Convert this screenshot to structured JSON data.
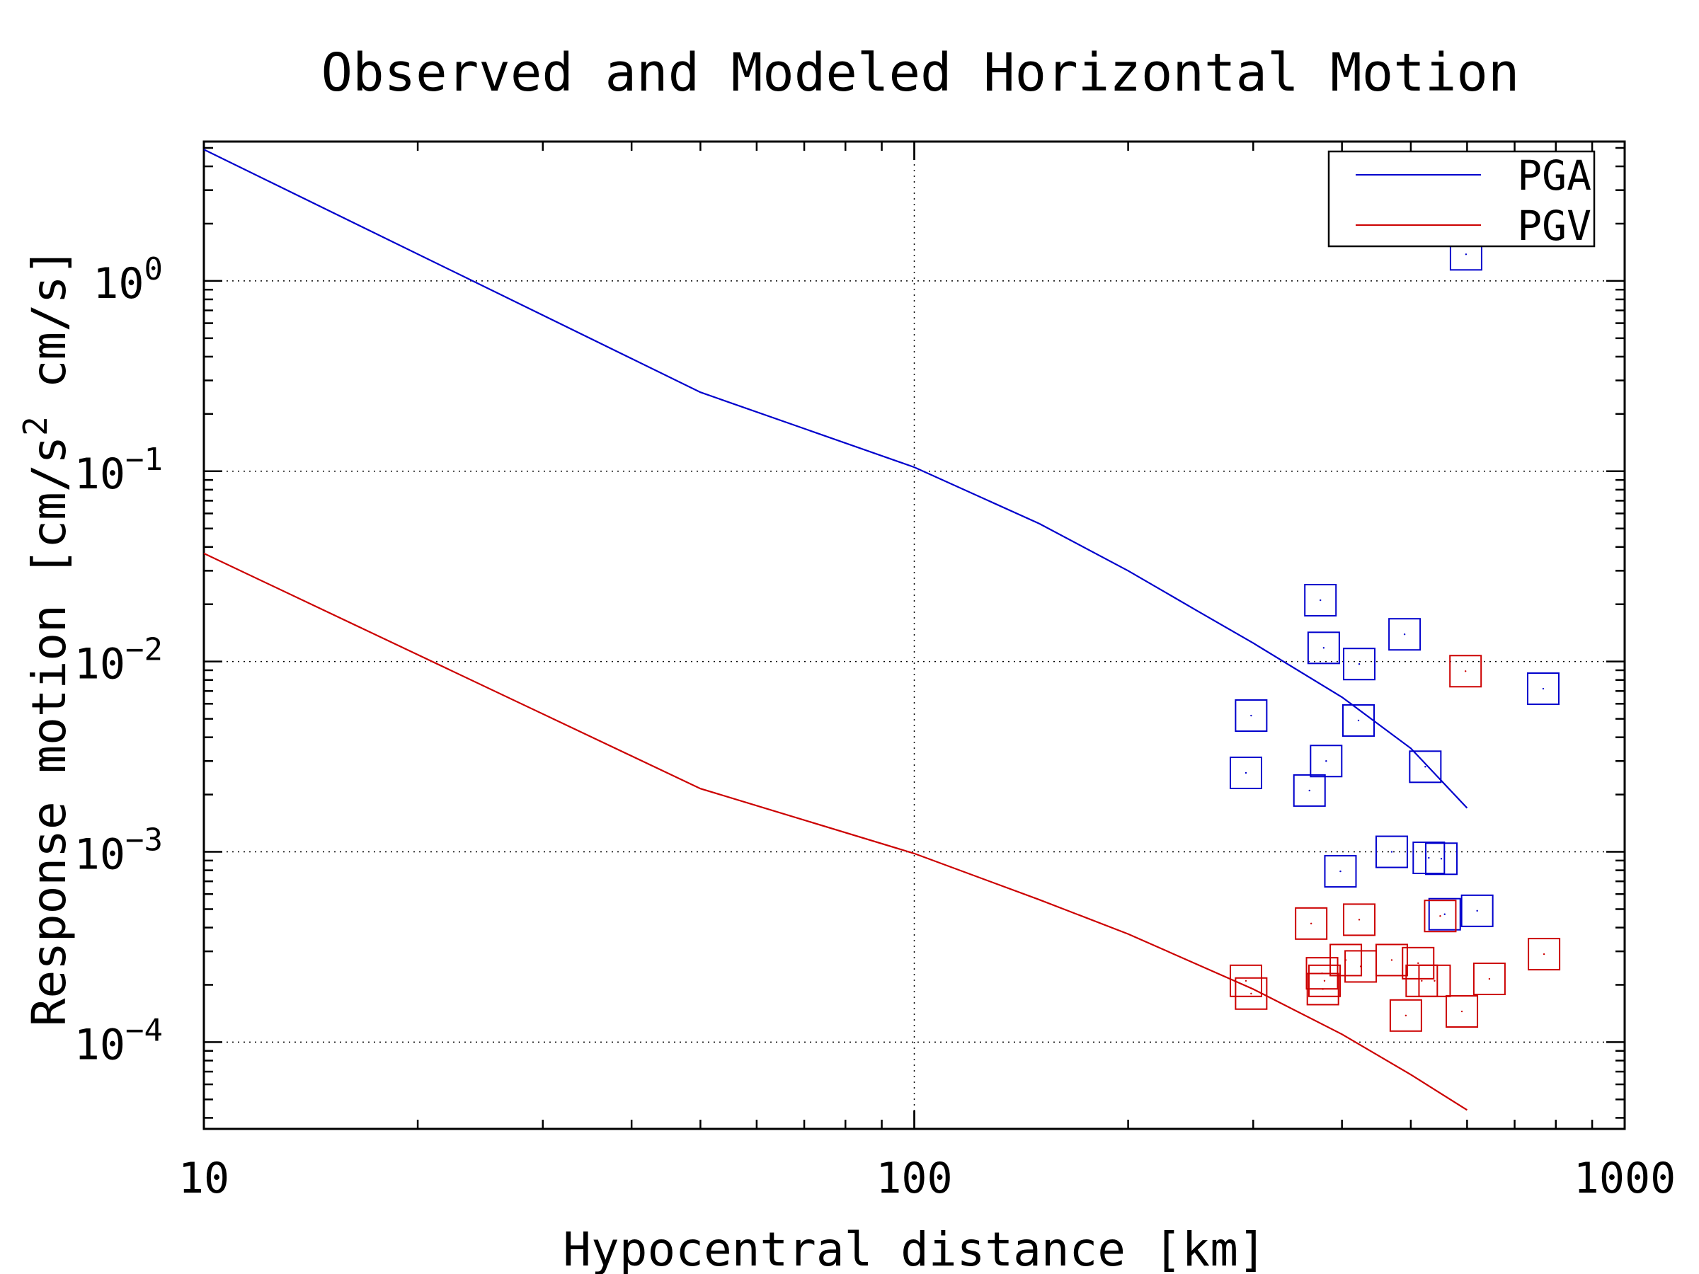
{
  "chart_data": {
    "type": "line",
    "title": "Observed and Modeled Horizontal Motion",
    "xlabel": "Hypocentral distance [km]",
    "ylabel_main": "Response motion  [cm/s",
    "ylabel_sup": "2",
    "ylabel_tail": "  cm/s]",
    "xscale": "log",
    "yscale": "log",
    "xlim": [
      10,
      1000
    ],
    "ylim": [
      3.5e-05,
      5.4
    ],
    "x_ticks": [
      {
        "value": 10,
        "label": "10"
      },
      {
        "value": 100,
        "label": "100"
      },
      {
        "value": 1000,
        "label": "1000"
      }
    ],
    "y_ticks": [
      {
        "value": 1,
        "base": "10",
        "exp": "0"
      },
      {
        "value": 0.1,
        "base": "10",
        "exp": "−1"
      },
      {
        "value": 0.01,
        "base": "10",
        "exp": "−2"
      },
      {
        "value": 0.001,
        "base": "10",
        "exp": "−3"
      },
      {
        "value": 0.0001,
        "base": "10",
        "exp": "−4"
      }
    ],
    "grid": true,
    "legend_position": "top-right",
    "series": [
      {
        "name": "PGA",
        "color": "#0000cc",
        "points": [
          [
            10,
            4.9
          ],
          [
            50,
            0.26
          ],
          [
            100,
            0.105
          ],
          [
            150,
            0.053
          ],
          [
            200,
            0.03
          ],
          [
            250,
            0.0185
          ],
          [
            300,
            0.0125
          ],
          [
            400,
            0.0065
          ],
          [
            500,
            0.0035
          ],
          [
            600,
            0.0017
          ]
        ]
      },
      {
        "name": "PGV",
        "color": "#cc0000",
        "points": [
          [
            10,
            0.037
          ],
          [
            50,
            0.00215
          ],
          [
            100,
            0.00098
          ],
          [
            150,
            0.00056
          ],
          [
            200,
            0.00037
          ],
          [
            300,
            0.00019
          ],
          [
            400,
            0.00011
          ],
          [
            500,
            6.75e-05
          ],
          [
            600,
            4.4e-05
          ]
        ]
      }
    ],
    "observed": [
      {
        "name": "PGA",
        "color": "#0000cc",
        "points": [
          [
            298,
            0.0052
          ],
          [
            293,
            0.0026
          ],
          [
            360,
            0.0021
          ],
          [
            373,
            0.021
          ],
          [
            377,
            0.0118
          ],
          [
            423,
            0.0097
          ],
          [
            380,
            0.003
          ],
          [
            422,
            0.0049
          ],
          [
            490,
            0.0139
          ],
          [
            524,
            0.0028
          ],
          [
            598,
            1.38
          ],
          [
            768,
            0.0072
          ],
          [
            398,
            0.00079
          ],
          [
            470,
            0.001
          ],
          [
            530,
            0.00093
          ],
          [
            552,
            0.00092
          ],
          [
            558,
            0.00047
          ],
          [
            620,
            0.00049
          ]
        ]
      },
      {
        "name": "PGV",
        "color": "#cc0000",
        "points": [
          [
            597,
            0.0089
          ],
          [
            362,
            0.00042
          ],
          [
            423,
            0.00044
          ],
          [
            550,
            0.00046
          ],
          [
            293,
            0.00021
          ],
          [
            298,
            0.00018
          ],
          [
            375,
            0.00023
          ],
          [
            378,
            0.00021
          ],
          [
            376,
            0.00019
          ],
          [
            405,
            0.00027
          ],
          [
            425,
            0.00025
          ],
          [
            470,
            0.00027
          ],
          [
            512,
            0.00026
          ],
          [
            518,
            0.00021
          ],
          [
            540,
            0.00021
          ],
          [
            492,
            0.000138
          ],
          [
            590,
            0.000145
          ],
          [
            645,
            0.000215
          ],
          [
            770,
            0.00029
          ]
        ]
      }
    ]
  }
}
